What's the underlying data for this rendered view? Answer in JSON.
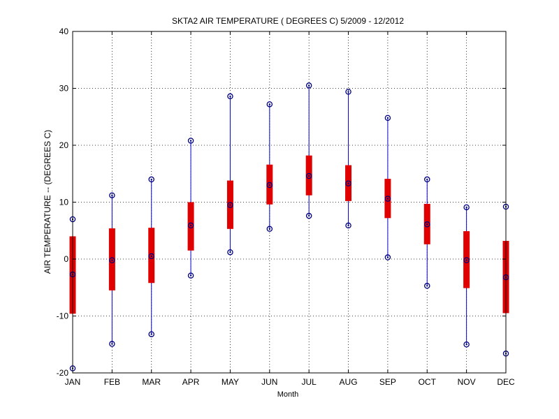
{
  "chart_data": {
    "type": "boxplot",
    "title": "SKTA2  AIR TEMPERATURE ( DEGREES C) 5/2009 - 12/2012",
    "xlabel": "Month",
    "ylabel": "AIR TEMPERATURE -- (DEGREES C)",
    "ylim": [
      -20,
      40
    ],
    "yticks": [
      -20,
      -10,
      0,
      10,
      20,
      30,
      40
    ],
    "grid": true,
    "categories": [
      "JAN",
      "FEB",
      "MAR",
      "APR",
      "MAY",
      "JUN",
      "JUL",
      "AUG",
      "SEP",
      "OCT",
      "NOV",
      "DEC"
    ],
    "series": [
      {
        "min": [
          -19.2,
          -14.9,
          -13.2,
          -2.9,
          1.2,
          5.3,
          7.6,
          5.9,
          0.3,
          -4.7,
          -15.0,
          -16.6
        ],
        "q1": [
          -9.6,
          -5.5,
          -4.2,
          1.5,
          5.3,
          9.6,
          11.2,
          10.2,
          7.2,
          2.6,
          -5.1,
          -9.5
        ],
        "median": [
          -2.7,
          -0.2,
          0.5,
          5.9,
          9.5,
          13.0,
          14.6,
          13.3,
          10.6,
          6.1,
          -0.2,
          -3.2
        ],
        "q3": [
          4.0,
          5.4,
          5.5,
          10.0,
          13.8,
          16.6,
          18.2,
          16.5,
          14.1,
          9.7,
          4.9,
          3.2
        ],
        "max": [
          7.0,
          11.2,
          14.0,
          20.8,
          28.6,
          27.2,
          30.5,
          29.4,
          24.8,
          14.0,
          9.1,
          9.2
        ]
      }
    ],
    "colors": {
      "whisker": "#0000cc",
      "box": "#e00000",
      "marker": "#000080",
      "grid": "#000000",
      "axis": "#000000"
    }
  }
}
